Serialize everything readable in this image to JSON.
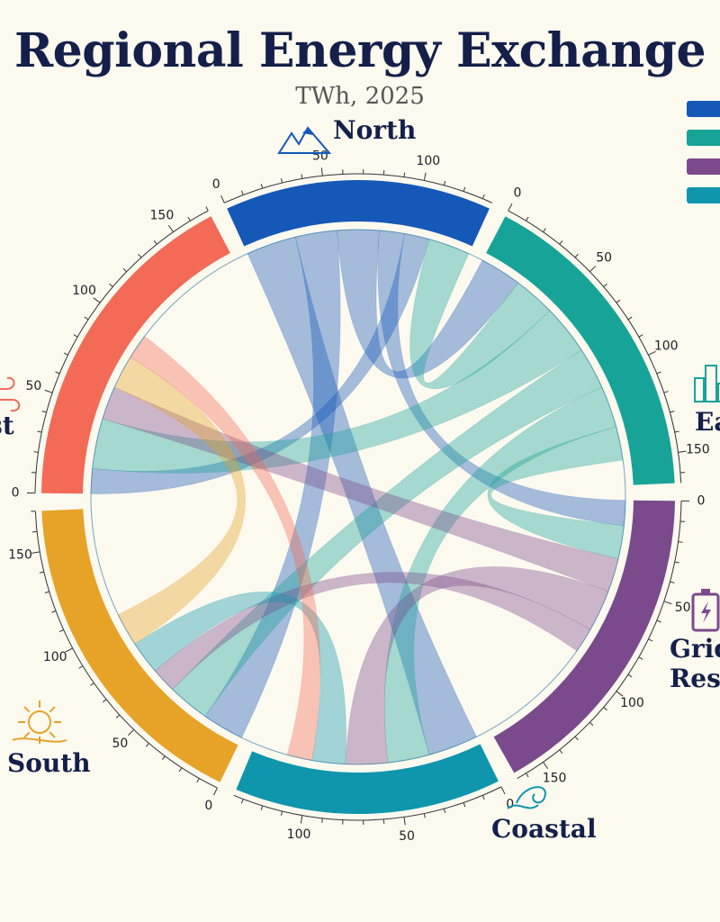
{
  "title": "Regional Energy Exchange",
  "subtitle": "TWh, 2025",
  "colors": {
    "background": "#fcf9ef",
    "north": "#1558b8",
    "east": "#17a398",
    "grid_reserve": "#7b4a8c",
    "coastal": "#0f96ad",
    "south": "#e6a328",
    "west": "#f36a56"
  },
  "chart_data": {
    "type": "chord",
    "unit": "TWh",
    "groups": [
      {
        "name": "North",
        "total": 135,
        "color": "#1558b8",
        "icon": "mountain-icon"
      },
      {
        "name": "East",
        "total": 165,
        "color": "#17a398",
        "icon": "city-icon"
      },
      {
        "name": "Grid Reserve",
        "total": 165,
        "color": "#7b4a8c",
        "icon": "battery-icon"
      },
      {
        "name": "Coastal",
        "total": 135,
        "color": "#0f96ad",
        "icon": "wave-icon"
      },
      {
        "name": "South",
        "total": 170,
        "color": "#e6a328",
        "icon": "sun-icon"
      },
      {
        "name": "West",
        "total": 170,
        "color": "#f36a56",
        "icon": "wind-icon"
      }
    ],
    "tick_step": 50,
    "tick_labels": [
      "0",
      "50",
      "100",
      "150"
    ],
    "flows": [
      {
        "from": "North",
        "to": "Coastal",
        "value": 30
      },
      {
        "from": "North",
        "to": "South",
        "value": 25
      },
      {
        "from": "North",
        "to": "East",
        "value": 25
      },
      {
        "from": "North",
        "to": "Grid Reserve",
        "value": 15
      },
      {
        "from": "North",
        "to": "West",
        "value": 15
      },
      {
        "from": "East",
        "to": "North",
        "value": 25
      },
      {
        "from": "East",
        "to": "West",
        "value": 30
      },
      {
        "from": "East",
        "to": "South",
        "value": 25
      },
      {
        "from": "East",
        "to": "Coastal",
        "value": 25
      },
      {
        "from": "East",
        "to": "Grid Reserve",
        "value": 20
      },
      {
        "from": "Grid Reserve",
        "to": "West",
        "value": 20
      },
      {
        "from": "Grid Reserve",
        "to": "Coastal",
        "value": 25
      },
      {
        "from": "Grid Reserve",
        "to": "South",
        "value": 15
      },
      {
        "from": "Coastal",
        "to": "South",
        "value": 20
      },
      {
        "from": "South",
        "to": "West",
        "value": 20
      },
      {
        "from": "West",
        "to": "Coastal",
        "value": 15
      }
    ]
  }
}
